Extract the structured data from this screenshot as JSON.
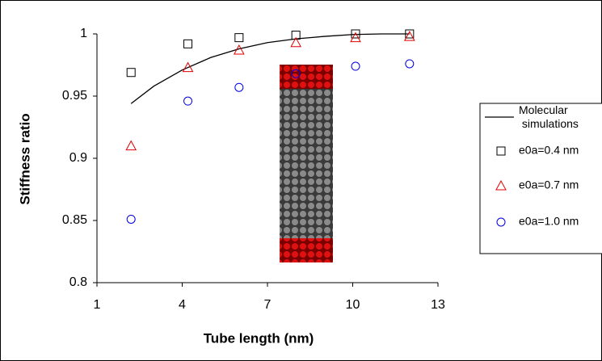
{
  "chart_data": {
    "type": "scatter",
    "x_label": "Tube length (nm)",
    "y_label": "Stiffness ratio",
    "xlim": [
      1,
      13
    ],
    "xticks": [
      1,
      4,
      7,
      10,
      13
    ],
    "ylim": [
      0.8,
      1
    ],
    "yticks": [
      0.8,
      0.85,
      0.9,
      0.95,
      1
    ],
    "series": [
      {
        "name": "Molecular simulations",
        "color": "#000000",
        "kind": "line",
        "x": [
          2.2,
          3,
          4,
          5,
          6,
          7,
          8,
          9,
          10,
          11,
          12
        ],
        "values": [
          0.944,
          0.958,
          0.971,
          0.981,
          0.988,
          0.993,
          0.996,
          0.998,
          0.9995,
          1.0,
          1.0
        ]
      },
      {
        "name": "e0a=0.4 nm",
        "color": "#000000",
        "marker": "square",
        "x": [
          2.2,
          4.2,
          6.0,
          8.0,
          10.1,
          12.0
        ],
        "values": [
          0.969,
          0.992,
          0.997,
          0.999,
          1.0,
          1.0
        ]
      },
      {
        "name": "e0a=0.7 nm",
        "color": "#e00000",
        "marker": "triangle",
        "x": [
          2.2,
          4.2,
          6.0,
          8.0,
          10.1,
          12.0
        ],
        "values": [
          0.91,
          0.973,
          0.987,
          0.993,
          0.997,
          0.998
        ]
      },
      {
        "name": "e0a=1.0 nm",
        "color": "#0000e0",
        "marker": "circle",
        "x": [
          2.2,
          4.2,
          6.0,
          8.0,
          10.1,
          12.0
        ],
        "values": [
          0.851,
          0.946,
          0.957,
          0.968,
          0.974,
          0.976
        ]
      }
    ]
  }
}
